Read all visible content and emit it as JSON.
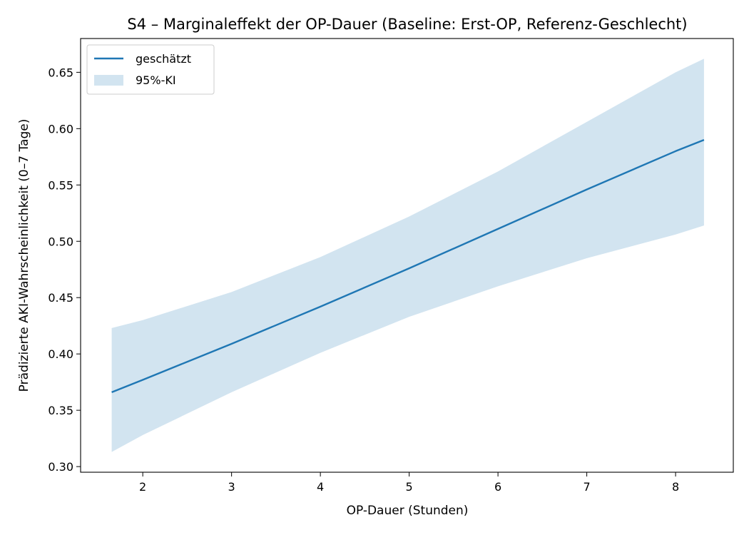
{
  "chart_data": {
    "type": "line",
    "title": "S4 – Marginaleffekt der OP-Dauer (Baseline: Erst-OP, Referenz-Geschlecht)",
    "xlabel": "OP-Dauer (Stunden)",
    "ylabel": "Prädizierte AKI-Wahrscheinlichkeit (0–7 Tage)",
    "xlim": [
      1.3,
      8.65
    ],
    "ylim": [
      0.295,
      0.68
    ],
    "xticks": [
      2,
      3,
      4,
      5,
      6,
      7,
      8
    ],
    "yticks": [
      0.3,
      0.35,
      0.4,
      0.45,
      0.5,
      0.55,
      0.6,
      0.65
    ],
    "grid": false,
    "legend_position": "top-left",
    "series": [
      {
        "name": "geschätzt",
        "kind": "line",
        "color": "#1f77b4",
        "x": [
          1.65,
          2.0,
          3.0,
          4.0,
          5.0,
          6.0,
          7.0,
          8.0,
          8.32
        ],
        "y": [
          0.366,
          0.377,
          0.409,
          0.442,
          0.476,
          0.511,
          0.546,
          0.58,
          0.59
        ]
      },
      {
        "name": "95%-KI",
        "kind": "band",
        "color": "#1f77b4",
        "opacity": 0.2,
        "x": [
          1.65,
          2.0,
          3.0,
          4.0,
          5.0,
          6.0,
          7.0,
          8.0,
          8.32
        ],
        "lower": [
          0.313,
          0.328,
          0.366,
          0.401,
          0.433,
          0.46,
          0.485,
          0.506,
          0.514
        ],
        "upper": [
          0.423,
          0.43,
          0.455,
          0.486,
          0.522,
          0.562,
          0.606,
          0.65,
          0.662
        ]
      }
    ]
  }
}
